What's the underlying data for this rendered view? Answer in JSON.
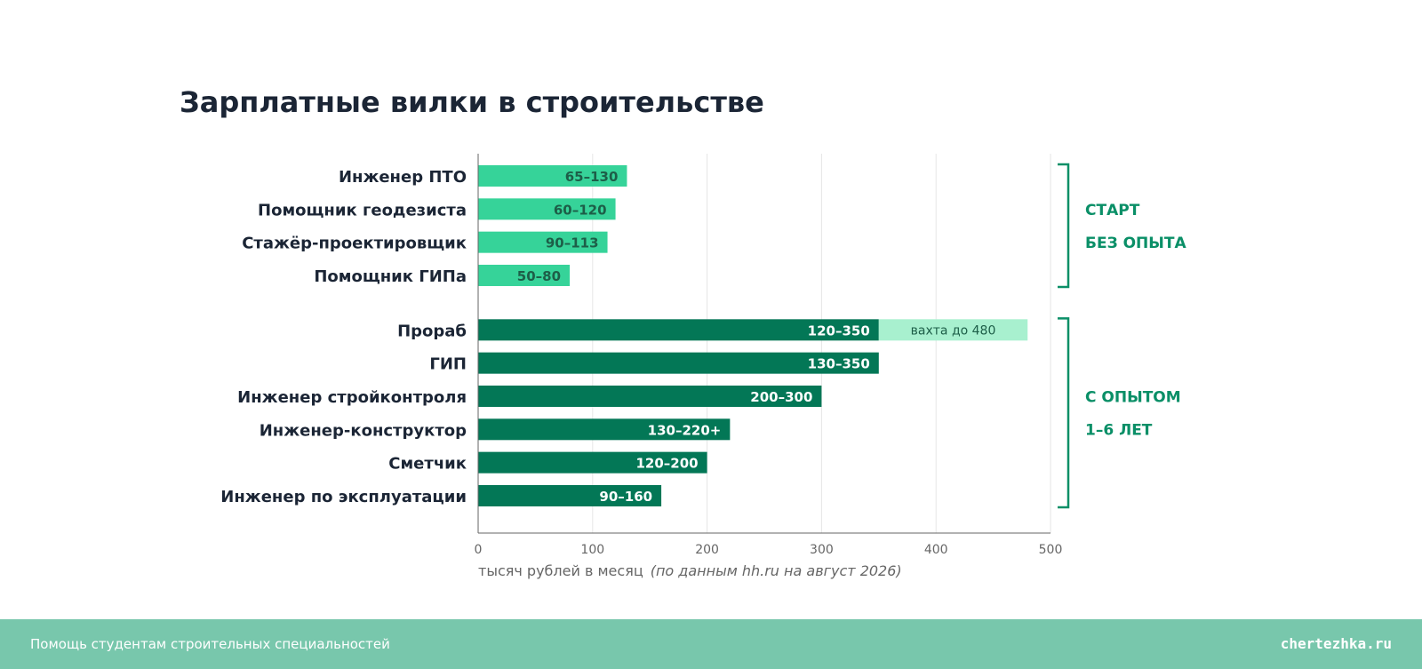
{
  "chart_data": {
    "type": "bar",
    "orientation": "horizontal",
    "title": "Зарплатные вилки в строительстве",
    "xlabel": "тысяч рублей в месяц",
    "source_note": "(по данным hh.ru на август 2026)",
    "xlim": [
      0,
      500
    ],
    "xticks": [
      0,
      100,
      200,
      300,
      400,
      500
    ],
    "grid": true,
    "groups": [
      {
        "label_line1": "СТАРТ",
        "label_line2": "БЕЗ ОПЫТА",
        "color": "#36d399",
        "label_color": "#1d5e48",
        "items": [
          {
            "name": "Инженер ПТО",
            "min": 65,
            "max": 130,
            "label": "65–130"
          },
          {
            "name": "Помощник геодезиста",
            "min": 60,
            "max": 120,
            "label": "60–120"
          },
          {
            "name": "Стажёр-проектировщик",
            "min": 90,
            "max": 113,
            "label": "90–113"
          },
          {
            "name": "Помощник ГИПа",
            "min": 50,
            "max": 80,
            "label": "50–80"
          }
        ]
      },
      {
        "label_line1": "С ОПЫТОМ",
        "label_line2": "1–6 ЛЕТ",
        "color": "#037756",
        "label_color": "#ffffff",
        "items": [
          {
            "name": "Прораб",
            "min": 120,
            "max": 350,
            "label": "120–350",
            "extension": {
              "to": 480,
              "label": "вахта до 480",
              "color": "#a8f0cf"
            }
          },
          {
            "name": "ГИП",
            "min": 130,
            "max": 350,
            "label": "130–350"
          },
          {
            "name": "Инженер стройконтроля",
            "min": 200,
            "max": 300,
            "label": "200–300"
          },
          {
            "name": "Инженер-конструктор",
            "min": 130,
            "max": 220,
            "label": "130–220+"
          },
          {
            "name": "Сметчик",
            "min": 120,
            "max": 200,
            "label": "120–200"
          },
          {
            "name": "Инженер по эксплуатации",
            "min": 90,
            "max": 160,
            "label": "90–160"
          }
        ]
      }
    ],
    "colors": {
      "axis": "#666666",
      "grid": "#e6e6e6",
      "category_text": "#1b2535",
      "group_label": "#0a8f67",
      "tick_text": "#666666"
    }
  },
  "footer": {
    "left": "Помощь студентам строительных специальностей",
    "right": "chertezhka.ru",
    "bg_color": "#78c7ac"
  }
}
